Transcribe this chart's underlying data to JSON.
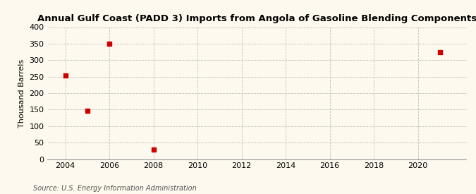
{
  "title": "Annual Gulf Coast (PADD 3) Imports from Angola of Gasoline Blending Components",
  "ylabel": "Thousand Barrels",
  "source": "Source: U.S. Energy Information Administration",
  "background_color": "#fef9ee",
  "plot_background_color": "#fef9ee",
  "data_years": [
    2004,
    2005,
    2006,
    2008,
    2021
  ],
  "data_values": [
    253,
    147,
    350,
    28,
    323
  ],
  "marker_color": "#cc0000",
  "marker_size": 16,
  "xlim": [
    2003.2,
    2022.2
  ],
  "ylim": [
    0,
    400
  ],
  "xticks": [
    2004,
    2006,
    2008,
    2010,
    2012,
    2014,
    2016,
    2018,
    2020
  ],
  "yticks": [
    0,
    50,
    100,
    150,
    200,
    250,
    300,
    350,
    400
  ],
  "title_fontsize": 9.5,
  "axis_fontsize": 8,
  "source_fontsize": 7,
  "grid_color": "#bbbbbb",
  "grid_style": "--",
  "grid_alpha": 0.9,
  "grid_linewidth": 0.6
}
